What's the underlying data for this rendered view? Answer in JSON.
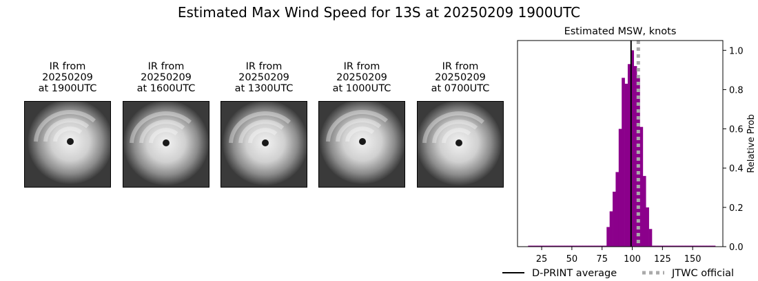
{
  "title": "Estimated Max Wind Speed for 13S at 20250209 1900UTC",
  "panels": [
    {
      "line1": "IR from",
      "line2": "20250209",
      "line3": "at 1900UTC"
    },
    {
      "line1": "IR from",
      "line2": "20250209",
      "line3": "at 1600UTC"
    },
    {
      "line1": "IR from",
      "line2": "20250209",
      "line3": "at 1300UTC"
    },
    {
      "line1": "IR from",
      "line2": "20250209",
      "line3": "at 1000UTC"
    },
    {
      "line1": "IR from",
      "line2": "20250209",
      "line3": "at 0700UTC"
    }
  ],
  "chart_data": {
    "type": "bar",
    "title": "Estimated MSW, knots",
    "xlabel": "",
    "ylabel": "Relative Prob",
    "xlim": [
      5,
      175
    ],
    "ylim": [
      0,
      1.05
    ],
    "xticks": [
      25,
      50,
      75,
      100,
      125,
      150
    ],
    "yticks": [
      0.0,
      0.2,
      0.4,
      0.6,
      0.8,
      1.0
    ],
    "yaxis_side": "right",
    "bar_color": "#8b008b",
    "bin_width": 2.5,
    "bins": [
      {
        "x": 15,
        "y": 0.005
      },
      {
        "x": 17.5,
        "y": 0.005
      },
      {
        "x": 20,
        "y": 0.005
      },
      {
        "x": 22.5,
        "y": 0.005
      },
      {
        "x": 25,
        "y": 0.005
      },
      {
        "x": 27.5,
        "y": 0.005
      },
      {
        "x": 30,
        "y": 0.005
      },
      {
        "x": 32.5,
        "y": 0.005
      },
      {
        "x": 35,
        "y": 0.005
      },
      {
        "x": 37.5,
        "y": 0.005
      },
      {
        "x": 40,
        "y": 0.005
      },
      {
        "x": 42.5,
        "y": 0.005
      },
      {
        "x": 45,
        "y": 0.005
      },
      {
        "x": 47.5,
        "y": 0.005
      },
      {
        "x": 50,
        "y": 0.005
      },
      {
        "x": 52.5,
        "y": 0.005
      },
      {
        "x": 55,
        "y": 0.005
      },
      {
        "x": 57.5,
        "y": 0.005
      },
      {
        "x": 60,
        "y": 0.005
      },
      {
        "x": 62.5,
        "y": 0.005
      },
      {
        "x": 65,
        "y": 0.005
      },
      {
        "x": 67.5,
        "y": 0.005
      },
      {
        "x": 70,
        "y": 0.005
      },
      {
        "x": 72.5,
        "y": 0.005
      },
      {
        "x": 75,
        "y": 0.005
      },
      {
        "x": 77.5,
        "y": 0.005
      },
      {
        "x": 80,
        "y": 0.1
      },
      {
        "x": 82.5,
        "y": 0.18
      },
      {
        "x": 85,
        "y": 0.28
      },
      {
        "x": 87.5,
        "y": 0.38
      },
      {
        "x": 90,
        "y": 0.6
      },
      {
        "x": 92.5,
        "y": 0.86
      },
      {
        "x": 95,
        "y": 0.83
      },
      {
        "x": 97.5,
        "y": 0.93
      },
      {
        "x": 100,
        "y": 1.0
      },
      {
        "x": 102.5,
        "y": 0.92
      },
      {
        "x": 105,
        "y": 0.86
      },
      {
        "x": 107.5,
        "y": 0.61
      },
      {
        "x": 110,
        "y": 0.36
      },
      {
        "x": 112.5,
        "y": 0.2
      },
      {
        "x": 115,
        "y": 0.09
      },
      {
        "x": 117.5,
        "y": 0.005
      },
      {
        "x": 120,
        "y": 0.005
      },
      {
        "x": 122.5,
        "y": 0.005
      },
      {
        "x": 125,
        "y": 0.005
      },
      {
        "x": 127.5,
        "y": 0.005
      },
      {
        "x": 130,
        "y": 0.005
      },
      {
        "x": 132.5,
        "y": 0.005
      },
      {
        "x": 135,
        "y": 0.005
      },
      {
        "x": 137.5,
        "y": 0.005
      },
      {
        "x": 140,
        "y": 0.005
      },
      {
        "x": 142.5,
        "y": 0.005
      },
      {
        "x": 145,
        "y": 0.005
      },
      {
        "x": 147.5,
        "y": 0.005
      },
      {
        "x": 150,
        "y": 0.005
      },
      {
        "x": 152.5,
        "y": 0.005
      },
      {
        "x": 155,
        "y": 0.005
      },
      {
        "x": 157.5,
        "y": 0.005
      },
      {
        "x": 160,
        "y": 0.005
      },
      {
        "x": 162.5,
        "y": 0.005
      },
      {
        "x": 165,
        "y": 0.005
      },
      {
        "x": 167.5,
        "y": 0.005
      }
    ],
    "lines": [
      {
        "name": "D-PRINT average",
        "x": 99,
        "color": "#000000",
        "style": "solid"
      },
      {
        "name": "JTWC official",
        "x": 105,
        "color": "#aaaaaa",
        "style": "dotted"
      }
    ],
    "legend_position": "bottom"
  }
}
